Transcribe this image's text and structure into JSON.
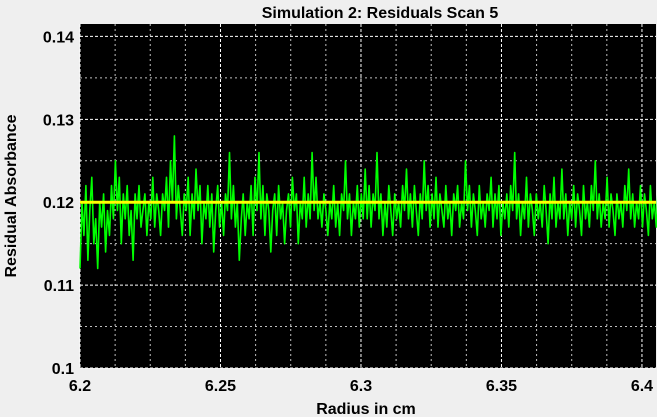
{
  "chart_data": {
    "type": "line",
    "title": "Simulation 2: Residuals Scan 5",
    "xlabel": "Radius in cm",
    "ylabel": "Residual Absorbance",
    "xlim": [
      6.2,
      6.405
    ],
    "ylim": [
      0.1,
      0.1415
    ],
    "x_ticks": [
      "6.2",
      "6.25",
      "6.3",
      "6.35",
      "6.4"
    ],
    "y_ticks": [
      "0.1",
      "0.11",
      "0.12",
      "0.13",
      "0.14"
    ],
    "grid": true,
    "background_color": "#000000",
    "grid_color": "#ffffff",
    "series": [
      {
        "color": "#00ff00",
        "x_start": 6.2,
        "x_step": 0.0007,
        "values": [
          0.112,
          0.12,
          0.116,
          0.122,
          0.113,
          0.119,
          0.123,
          0.115,
          0.118,
          0.112,
          0.12,
          0.117,
          0.121,
          0.114,
          0.119,
          0.116,
          0.122,
          0.118,
          0.125,
          0.119,
          0.123,
          0.115,
          0.121,
          0.118,
          0.122,
          0.116,
          0.119,
          0.113,
          0.121,
          0.118,
          0.122,
          0.117,
          0.119,
          0.121,
          0.116,
          0.12,
          0.118,
          0.123,
          0.117,
          0.121,
          0.119,
          0.116,
          0.121,
          0.119,
          0.123,
          0.117,
          0.125,
          0.12,
          0.128,
          0.118,
          0.122,
          0.119,
          0.116,
          0.121,
          0.119,
          0.123,
          0.116,
          0.121,
          0.118,
          0.124,
          0.119,
          0.122,
          0.115,
          0.12,
          0.118,
          0.122,
          0.117,
          0.121,
          0.114,
          0.119,
          0.122,
          0.117,
          0.12,
          0.116,
          0.121,
          0.119,
          0.126,
          0.118,
          0.122,
          0.117,
          0.12,
          0.113,
          0.118,
          0.121,
          0.116,
          0.12,
          0.118,
          0.122,
          0.116,
          0.123,
          0.119,
          0.126,
          0.118,
          0.122,
          0.116,
          0.121,
          0.119,
          0.114,
          0.119,
          0.121,
          0.116,
          0.122,
          0.118,
          0.12,
          0.115,
          0.119,
          0.121,
          0.117,
          0.123,
          0.119,
          0.121,
          0.115,
          0.12,
          0.118,
          0.123,
          0.117,
          0.121,
          0.118,
          0.126,
          0.119,
          0.123,
          0.118,
          0.12,
          0.117,
          0.121,
          0.119,
          0.116,
          0.12,
          0.118,
          0.122,
          0.117,
          0.12,
          0.116,
          0.121,
          0.119,
          0.125,
          0.118,
          0.121,
          0.116,
          0.12,
          0.118,
          0.122,
          0.117,
          0.121,
          0.118,
          0.124,
          0.118,
          0.122,
          0.117,
          0.121,
          0.119,
          0.126,
          0.118,
          0.121,
          0.116,
          0.12,
          0.117,
          0.122,
          0.119,
          0.116,
          0.121,
          0.118,
          0.12,
          0.117,
          0.122,
          0.119,
          0.124,
          0.118,
          0.121,
          0.117,
          0.122,
          0.119,
          0.116,
          0.121,
          0.118,
          0.125,
          0.119,
          0.122,
          0.117,
          0.121,
          0.118,
          0.123,
          0.117,
          0.121,
          0.119,
          0.117,
          0.122,
          0.118,
          0.12,
          0.116,
          0.121,
          0.119,
          0.122,
          0.117,
          0.12,
          0.118,
          0.125,
          0.119,
          0.122,
          0.117,
          0.121,
          0.119,
          0.116,
          0.122,
          0.118,
          0.12,
          0.117,
          0.121,
          0.119,
          0.123,
          0.117,
          0.121,
          0.118,
          0.122,
          0.116,
          0.12,
          0.118,
          0.121,
          0.117,
          0.122,
          0.119,
          0.126,
          0.118,
          0.121,
          0.116,
          0.12,
          0.118,
          0.123,
          0.117,
          0.121,
          0.119,
          0.116,
          0.121,
          0.118,
          0.12,
          0.117,
          0.122,
          0.119,
          0.115,
          0.121,
          0.118,
          0.123,
          0.117,
          0.12,
          0.118,
          0.124,
          0.118,
          0.121,
          0.116,
          0.12,
          0.118,
          0.122,
          0.117,
          0.121,
          0.119,
          0.116,
          0.122,
          0.118,
          0.12,
          0.117,
          0.122,
          0.119,
          0.125,
          0.118,
          0.121,
          0.117,
          0.12,
          0.118,
          0.123,
          0.117,
          0.121,
          0.119,
          0.116,
          0.121,
          0.118,
          0.12,
          0.117,
          0.122,
          0.119,
          0.124,
          0.118,
          0.121,
          0.117,
          0.12,
          0.118,
          0.122,
          0.117,
          0.121,
          0.119,
          0.116,
          0.122,
          0.118,
          0.12,
          0.117,
          0.122,
          0.119,
          0.115,
          0.121,
          0.118
        ]
      },
      {
        "color": "#ffff00",
        "x": [
          6.2,
          6.405
        ],
        "values": [
          0.12,
          0.12
        ]
      }
    ]
  }
}
